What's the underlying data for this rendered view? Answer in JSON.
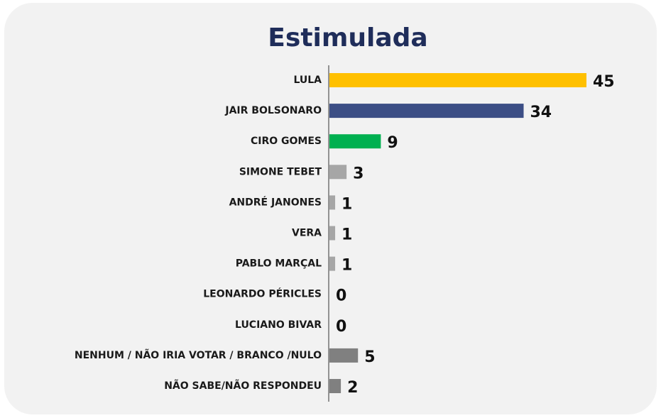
{
  "chart_data": {
    "type": "bar",
    "orientation": "horizontal",
    "title": "Estimulada",
    "categories": [
      "LULA",
      "JAIR BOLSONARO",
      "CIRO GOMES",
      "SIMONE TEBET",
      "ANDRÉ JANONES",
      "VERA",
      "PABLO MARÇAL",
      "LEONARDO PÉRICLES",
      "LUCIANO BIVAR",
      "NENHUM / NÃO IRIA VOTAR / BRANCO /NULO",
      "NÃO SABE/NÃO RESPONDEU"
    ],
    "values": [
      45,
      34,
      9,
      3,
      1,
      1,
      1,
      0,
      0,
      5,
      2
    ],
    "colors": [
      "#ffc000",
      "#3c4e85",
      "#00b050",
      "#a6a6a6",
      "#a6a6a6",
      "#a6a6a6",
      "#a6a6a6",
      "#a6a6a6",
      "#a6a6a6",
      "#808080",
      "#808080"
    ]
  }
}
